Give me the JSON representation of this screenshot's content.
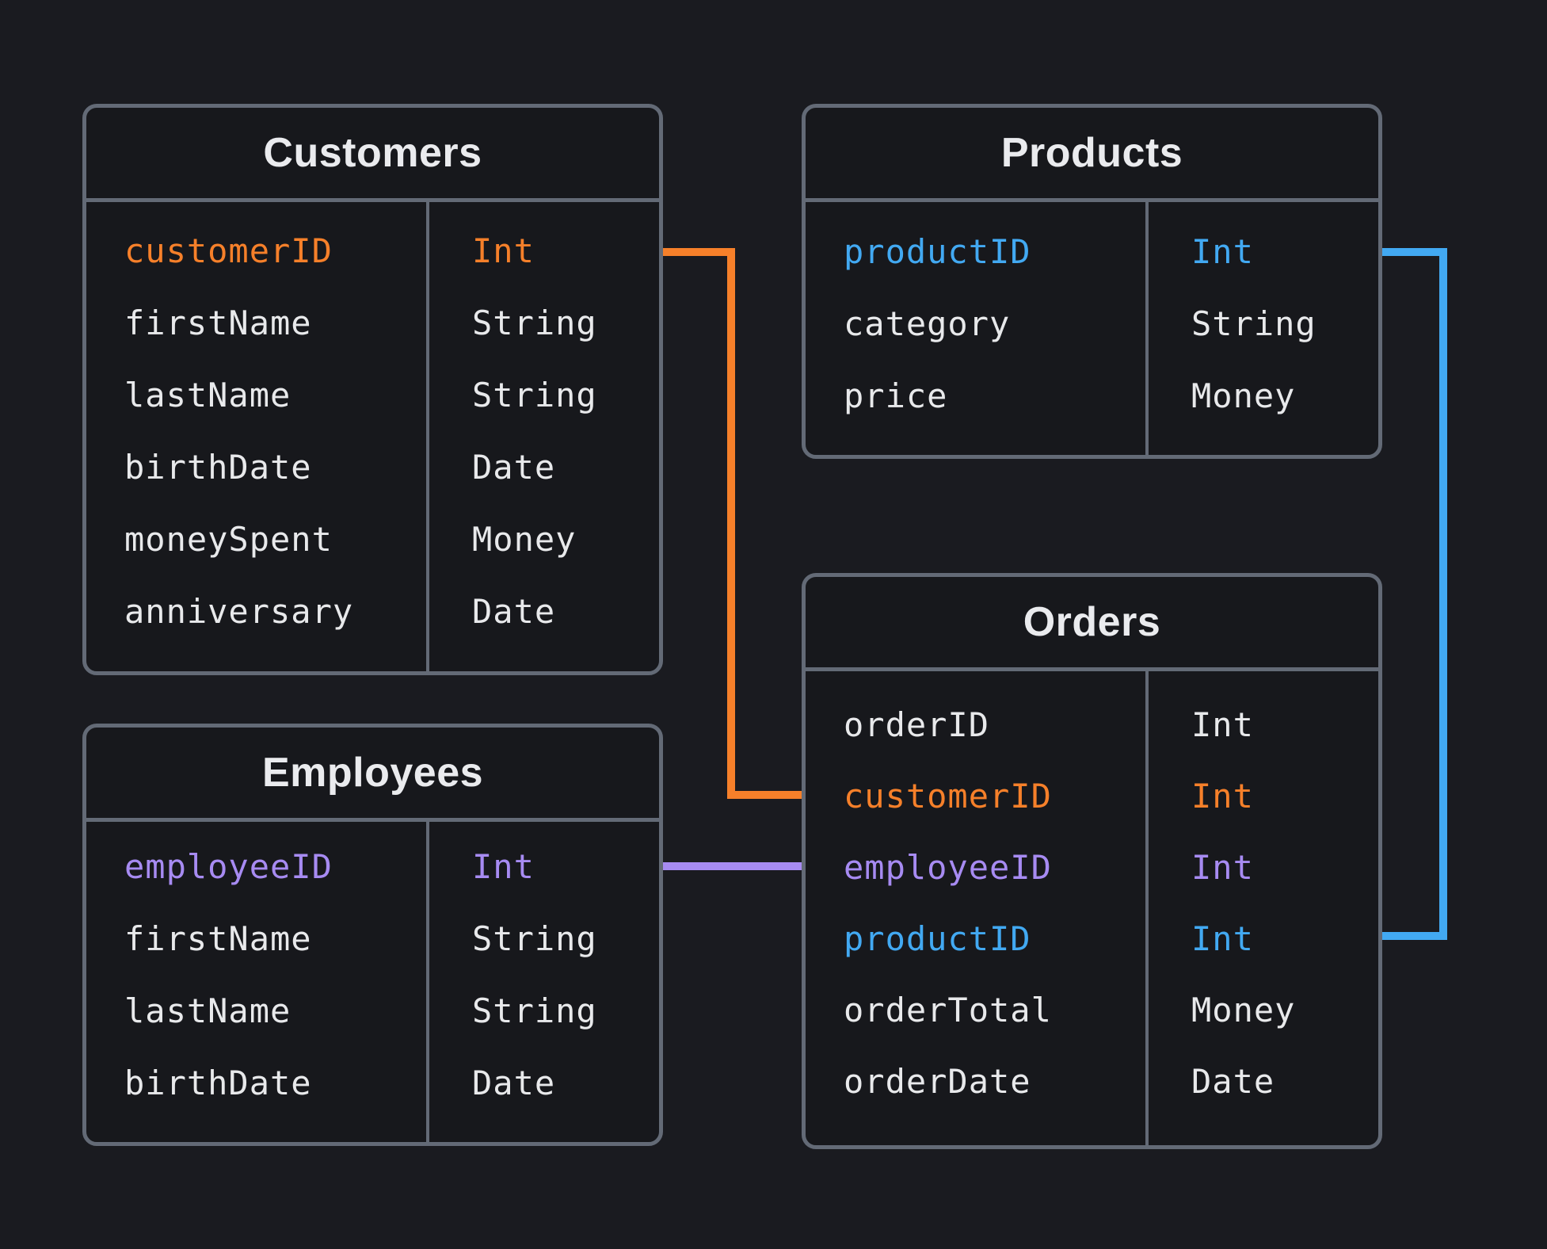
{
  "diagram": {
    "tables": [
      {
        "id": "customers",
        "title": "Customers",
        "fields": [
          {
            "name": "customerID",
            "type": "Int",
            "color": "orange"
          },
          {
            "name": "firstName",
            "type": "String",
            "color": "default"
          },
          {
            "name": "lastName",
            "type": "String",
            "color": "default"
          },
          {
            "name": "birthDate",
            "type": "Date",
            "color": "default"
          },
          {
            "name": "moneySpent",
            "type": "Money",
            "color": "default"
          },
          {
            "name": "anniversary",
            "type": "Date",
            "color": "default"
          }
        ]
      },
      {
        "id": "products",
        "title": "Products",
        "fields": [
          {
            "name": "productID",
            "type": "Int",
            "color": "blue"
          },
          {
            "name": "category",
            "type": "String",
            "color": "default"
          },
          {
            "name": "price",
            "type": "Money",
            "color": "default"
          }
        ]
      },
      {
        "id": "employees",
        "title": "Employees",
        "fields": [
          {
            "name": "employeeID",
            "type": "Int",
            "color": "purple"
          },
          {
            "name": "firstName",
            "type": "String",
            "color": "default"
          },
          {
            "name": "lastName",
            "type": "String",
            "color": "default"
          },
          {
            "name": "birthDate",
            "type": "Date",
            "color": "default"
          }
        ]
      },
      {
        "id": "orders",
        "title": "Orders",
        "fields": [
          {
            "name": "orderID",
            "type": "Int",
            "color": "default"
          },
          {
            "name": "customerID",
            "type": "Int",
            "color": "orange"
          },
          {
            "name": "employeeID",
            "type": "Int",
            "color": "purple"
          },
          {
            "name": "productID",
            "type": "Int",
            "color": "blue"
          },
          {
            "name": "orderTotal",
            "type": "Money",
            "color": "default"
          },
          {
            "name": "orderDate",
            "type": "Date",
            "color": "default"
          }
        ]
      }
    ],
    "relationships": [
      {
        "name": "customers-orders",
        "key": "customerID",
        "color": "orange"
      },
      {
        "name": "employees-orders",
        "key": "employeeID",
        "color": "purple"
      },
      {
        "name": "products-orders",
        "key": "productID",
        "color": "blue"
      }
    ],
    "colors": {
      "orange": "#f6802a",
      "purple": "#a78bf2",
      "blue": "#42a9f2",
      "text": "#e8e9eb",
      "title": "#eaebee",
      "border": "#636a76",
      "page_bg": "#1a1b20",
      "table_bg": "#17181c"
    }
  }
}
